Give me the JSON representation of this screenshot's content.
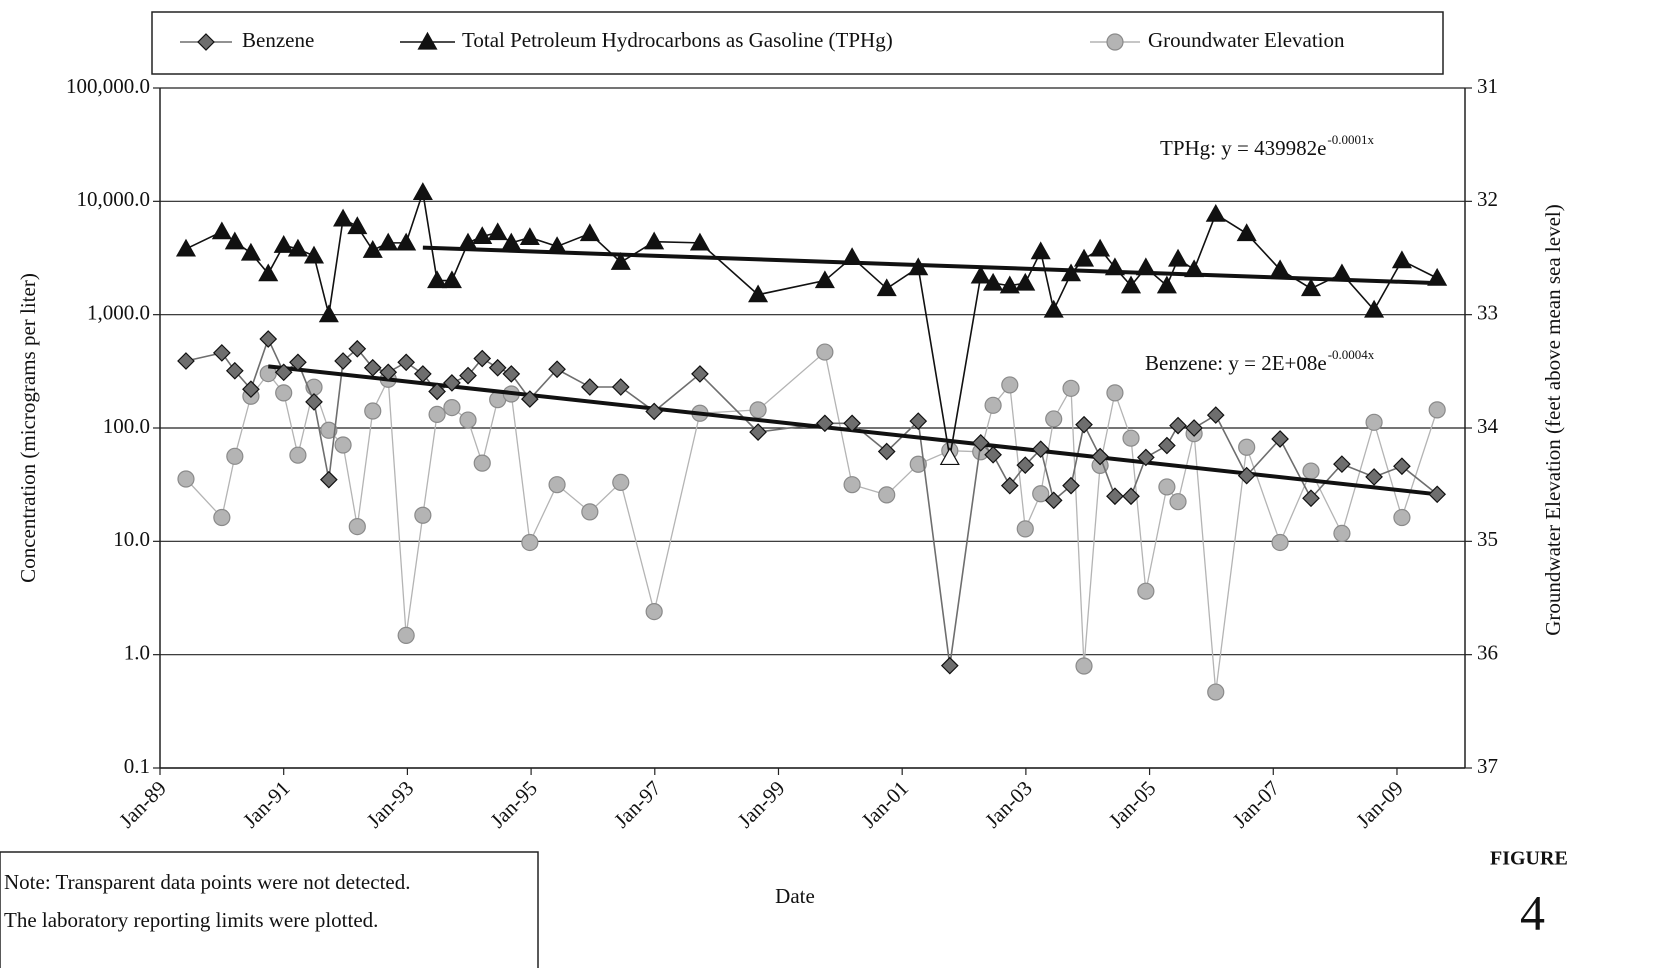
{
  "chart_data": {
    "type": "line",
    "y_scale": "log",
    "grid": true,
    "x_label": "Date",
    "y_label": "Concentration (micrograms per liter)",
    "y2_label": "Groundwater Elevation (feet above mean sea level)",
    "xlim": [
      1989,
      2010.1
    ],
    "xticks": [
      {
        "value": 1989,
        "label": "Jan-89"
      },
      {
        "value": 1991,
        "label": "Jan-91"
      },
      {
        "value": 1993,
        "label": "Jan-93"
      },
      {
        "value": 1995,
        "label": "Jan-95"
      },
      {
        "value": 1997,
        "label": "Jan-97"
      },
      {
        "value": 1999,
        "label": "Jan-99"
      },
      {
        "value": 2001,
        "label": "Jan-01"
      },
      {
        "value": 2003,
        "label": "Jan-03"
      },
      {
        "value": 2005,
        "label": "Jan-05"
      },
      {
        "value": 2007,
        "label": "Jan-07"
      },
      {
        "value": 2009,
        "label": "Jan-09"
      }
    ],
    "ylim": [
      0.1,
      100000
    ],
    "yticks": [
      {
        "value": 0.1,
        "label": "0.1"
      },
      {
        "value": 1,
        "label": "1.0"
      },
      {
        "value": 10,
        "label": "10.0"
      },
      {
        "value": 100,
        "label": "100.0"
      },
      {
        "value": 1000,
        "label": "1,000.0"
      },
      {
        "value": 10000,
        "label": "10,000.0"
      },
      {
        "value": 100000,
        "label": "100,000.0"
      }
    ],
    "y2lim": [
      37,
      31
    ],
    "y2ticks": [
      31,
      32,
      33,
      34,
      35,
      36,
      37
    ],
    "x": [
      1989.42,
      1990.0,
      1990.21,
      1990.47,
      1990.75,
      1991.0,
      1991.23,
      1991.49,
      1991.73,
      1991.96,
      1992.19,
      1992.44,
      1992.69,
      1992.98,
      1993.25,
      1993.48,
      1993.72,
      1993.98,
      1994.21,
      1994.46,
      1994.68,
      1994.98,
      1995.42,
      1995.95,
      1996.45,
      1996.99,
      1997.73,
      1998.67,
      1999.75,
      2000.19,
      2000.75,
      2001.26,
      2001.77,
      2002.27,
      2002.47,
      2002.74,
      2002.99,
      2003.24,
      2003.45,
      2003.73,
      2003.94,
      2004.2,
      2004.44,
      2004.7,
      2004.94,
      2005.28,
      2005.46,
      2005.72,
      2006.07,
      2006.57,
      2007.11,
      2007.61,
      2008.11,
      2008.63,
      2009.08,
      2009.65
    ],
    "series": [
      {
        "name": "Benzene",
        "color": "#6e6e6e",
        "marker": "diamond",
        "values": [
          390,
          460,
          320,
          220,
          610,
          310,
          380,
          170,
          35,
          390,
          500,
          340,
          310,
          380,
          300,
          210,
          250,
          290,
          410,
          340,
          300,
          180,
          330,
          230,
          230,
          140,
          300,
          92,
          110,
          110,
          62,
          115,
          0.8,
          74,
          58,
          31,
          47,
          65,
          23,
          31,
          107,
          56,
          25,
          25,
          55,
          70,
          105,
          100,
          130,
          38,
          80,
          24,
          48,
          37,
          46,
          26
        ],
        "trend": {
          "x": [
            1990.75,
            2009.65
          ],
          "values": [
            350,
            26
          ]
        }
      },
      {
        "name": "Total Petroleum Hydrocarbons as Gasoline (TPHg)",
        "color": "#111111",
        "marker": "triangle",
        "values": [
          3800,
          5400,
          4400,
          3500,
          2300,
          4100,
          3800,
          3300,
          1000,
          7000,
          6000,
          3700,
          4300,
          4300,
          12000,
          2000,
          2000,
          4300,
          4900,
          5300,
          4300,
          4800,
          4000,
          5200,
          2900,
          4400,
          4300,
          1500,
          2000,
          3200,
          1700,
          2600,
          55,
          2200,
          1900,
          1800,
          1900,
          3600,
          1100,
          2300,
          3100,
          3800,
          2600,
          1800,
          2600,
          1800,
          3100,
          2500,
          7700,
          5200,
          2500,
          1700,
          2300,
          1100,
          3000,
          2100
        ],
        "open_markers": [
          32
        ],
        "trend": {
          "x": [
            1993.25,
            2009.65
          ],
          "values": [
            3900,
            1900
          ]
        }
      },
      {
        "name": "Groundwater Elevation",
        "color": "#b4b4b4",
        "marker": "circle",
        "axis": "y2",
        "values": [
          34.45,
          34.79,
          34.25,
          33.72,
          33.52,
          33.69,
          34.24,
          33.64,
          34.02,
          34.15,
          34.87,
          33.85,
          33.57,
          35.83,
          34.77,
          33.88,
          33.82,
          33.93,
          34.31,
          33.75,
          33.7,
          35.01,
          34.5,
          34.74,
          34.48,
          35.62,
          33.87,
          33.84,
          33.33,
          34.5,
          34.59,
          34.32,
          34.2,
          34.21,
          33.8,
          33.62,
          34.89,
          34.58,
          33.92,
          33.65,
          36.1,
          34.33,
          33.69,
          34.09,
          35.44,
          34.52,
          34.65,
          34.05,
          36.33,
          34.17,
          35.01,
          34.38,
          34.93,
          33.95,
          34.79,
          33.84
        ]
      }
    ],
    "annotations": [
      {
        "text": "TPHg: y = 439982e",
        "exponent": "-0.0001x"
      },
      {
        "text": "Benzene: y = 2E+08e",
        "exponent": "-0.0004x"
      }
    ],
    "note": [
      "Note: Transparent data points were not detected.",
      "The laboratory reporting limits were plotted."
    ],
    "figure_label": "FIGURE",
    "figure_number": "4"
  }
}
